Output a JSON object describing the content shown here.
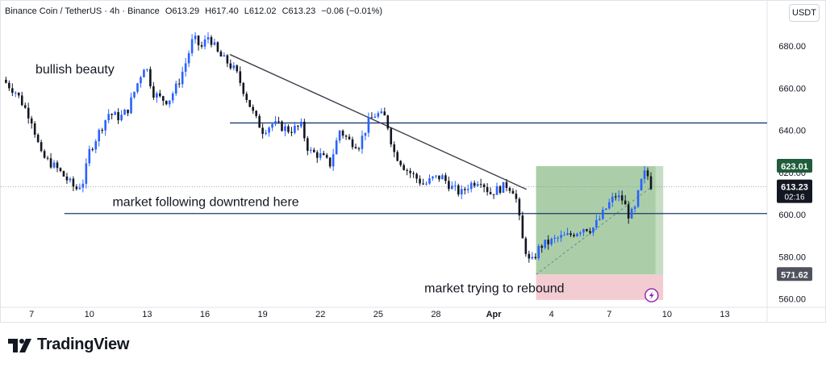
{
  "header": {
    "symbol": "Binance Coin / TetherUS · 4h · Binance",
    "open": "O613.29",
    "high": "H617.40",
    "low": "L612.02",
    "close": "C613.23",
    "change": "−0.06 (−0.01%)",
    "currency": "USDT"
  },
  "brand": {
    "name": "TradingView",
    "icon": "tradingview-logo-icon"
  },
  "colors": {
    "up": "#2962ff",
    "down": "#131722",
    "line": "#1e3a6e",
    "profit": "#9cc59a",
    "loss": "#f2c7cc"
  },
  "chart_data": {
    "type": "candlestick",
    "timeframe": "4h",
    "ylim": [
      556,
      690
    ],
    "y_ticks": [
      560,
      580,
      600,
      620,
      640,
      660,
      680
    ],
    "y_tick_labels": [
      "560.00",
      "580.00",
      "600.00",
      "620.00",
      "640.00",
      "660.00",
      "680.00"
    ],
    "x_ticks": [
      {
        "day": 7,
        "label": "7"
      },
      {
        "day": 10,
        "label": "10"
      },
      {
        "day": 13,
        "label": "13"
      },
      {
        "day": 16,
        "label": "16"
      },
      {
        "day": 19,
        "label": "19"
      },
      {
        "day": 22,
        "label": "22"
      },
      {
        "day": 25,
        "label": "25"
      },
      {
        "day": 28,
        "label": "28"
      },
      {
        "day": 31,
        "label": "Apr"
      },
      {
        "day": 34,
        "label": "4"
      },
      {
        "day": 37,
        "label": "7"
      },
      {
        "day": 40,
        "label": "10"
      },
      {
        "day": 43,
        "label": "13"
      }
    ],
    "xlim": [
      5.4,
      45.2
    ],
    "price_path": [
      [
        5.5,
        664
      ],
      [
        6.2,
        658
      ],
      [
        7.0,
        645
      ],
      [
        7.5,
        628
      ],
      [
        8.3,
        622
      ],
      [
        8.9,
        616
      ],
      [
        9.3,
        612
      ],
      [
        9.7,
        616
      ],
      [
        10.0,
        630
      ],
      [
        10.6,
        641
      ],
      [
        11.0,
        648
      ],
      [
        11.6,
        646
      ],
      [
        12.0,
        650
      ],
      [
        12.4,
        660
      ],
      [
        12.9,
        672
      ],
      [
        13.3,
        658
      ],
      [
        13.7,
        655
      ],
      [
        14.1,
        654
      ],
      [
        14.6,
        662
      ],
      [
        15.0,
        672
      ],
      [
        15.4,
        684
      ],
      [
        15.8,
        679
      ],
      [
        16.2,
        685
      ],
      [
        16.7,
        676
      ],
      [
        17.2,
        672
      ],
      [
        17.6,
        668
      ],
      [
        18.1,
        657
      ],
      [
        18.6,
        646
      ],
      [
        19.0,
        640
      ],
      [
        19.5,
        643
      ],
      [
        19.9,
        642
      ],
      [
        20.4,
        640
      ],
      [
        21.0,
        642
      ],
      [
        21.4,
        630
      ],
      [
        22.0,
        628
      ],
      [
        22.5,
        624
      ],
      [
        23.0,
        640
      ],
      [
        23.5,
        635
      ],
      [
        24.0,
        633
      ],
      [
        24.5,
        644
      ],
      [
        24.9,
        648
      ],
      [
        25.4,
        646
      ],
      [
        25.8,
        630
      ],
      [
        26.4,
        622
      ],
      [
        26.9,
        618
      ],
      [
        27.4,
        614
      ],
      [
        27.8,
        617
      ],
      [
        28.3,
        618
      ],
      [
        28.8,
        613
      ],
      [
        29.3,
        610
      ],
      [
        29.7,
        614
      ],
      [
        30.3,
        617
      ],
      [
        30.8,
        610
      ],
      [
        31.2,
        612
      ],
      [
        31.7,
        614
      ],
      [
        32.1,
        611
      ],
      [
        32.5,
        588
      ],
      [
        32.9,
        576
      ],
      [
        33.4,
        585
      ],
      [
        33.9,
        587
      ],
      [
        34.4,
        589
      ],
      [
        34.9,
        590
      ],
      [
        35.3,
        592
      ],
      [
        35.7,
        594
      ],
      [
        36.1,
        593
      ],
      [
        36.5,
        598
      ],
      [
        36.9,
        604
      ],
      [
        37.3,
        609
      ],
      [
        37.7,
        607
      ],
      [
        38.0,
        600
      ],
      [
        38.3,
        601
      ],
      [
        38.6,
        614
      ],
      [
        38.9,
        621
      ],
      [
        39.2,
        613
      ]
    ],
    "trendline": {
      "from": [
        17.3,
        676
      ],
      "to": [
        32.7,
        612
      ]
    },
    "resistance": {
      "price": 643.5,
      "from": 17.3
    },
    "support": {
      "price": 600.5,
      "from": 8.7
    },
    "position": {
      "x_from": 33.2,
      "x_to": 39.8,
      "entry": 571.6,
      "target": 623.0,
      "stop": 559.5,
      "current": 613.2,
      "icon": "lightning-icon"
    },
    "last_price": {
      "value": "613.23",
      "countdown": "02:16",
      "price": 613.2
    },
    "target_label": {
      "value": "623.01",
      "price": 623.0
    },
    "entry_label": {
      "value": "571.62",
      "price": 571.6
    },
    "annotations": [
      {
        "text": "bullish beauty",
        "x": 7.2,
        "price": 667
      },
      {
        "text": "market following downtrend here",
        "x": 11.2,
        "price": 604
      },
      {
        "text": "market trying to rebound",
        "x": 27.4,
        "price": 563
      }
    ]
  }
}
